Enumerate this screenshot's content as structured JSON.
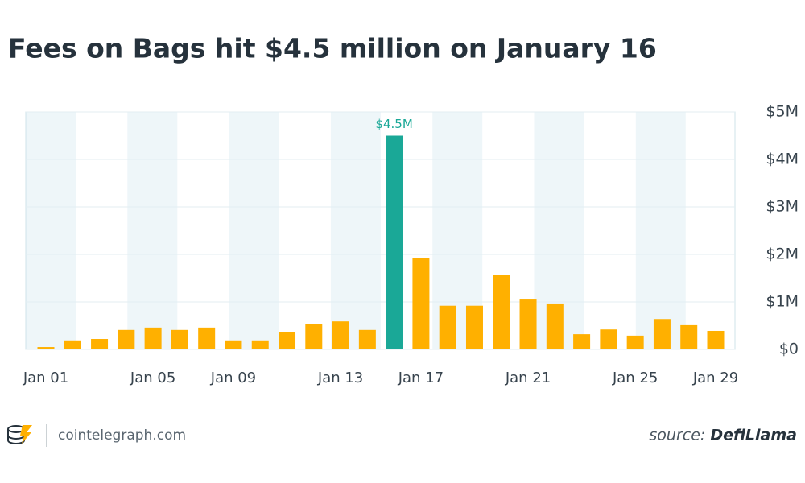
{
  "chart_data": {
    "type": "bar",
    "title": "Fees on Bags hit $4.5 million on January 16",
    "categories": [
      "Jan 01",
      null,
      null,
      null,
      "Jan 05",
      null,
      null,
      "Jan 09",
      null,
      null,
      null,
      "Jan 13",
      null,
      null,
      "Jan 17",
      null,
      null,
      null,
      "Jan 21",
      null,
      null,
      null,
      "Jan 25",
      null,
      null,
      "Jan 29"
    ],
    "values": [
      50000,
      190000,
      220000,
      410000,
      460000,
      410000,
      460000,
      190000,
      190000,
      360000,
      530000,
      590000,
      410000,
      4500000,
      1930000,
      920000,
      920000,
      1560000,
      1050000,
      950000,
      320000,
      420000,
      290000,
      640000,
      510000,
      390000
    ],
    "value_labels": [
      null,
      null,
      null,
      null,
      null,
      null,
      null,
      null,
      null,
      null,
      null,
      null,
      null,
      "$4.5M",
      null,
      null,
      null,
      null,
      null,
      null,
      null,
      null,
      null,
      null,
      null,
      null
    ],
    "colors": [
      "#ffb000",
      "#ffb000",
      "#ffb000",
      "#ffb000",
      "#ffb000",
      "#ffb000",
      "#ffb000",
      "#ffb000",
      "#ffb000",
      "#ffb000",
      "#ffb000",
      "#ffb000",
      "#ffb000",
      "#1aa897",
      "#ffb000",
      "#ffb000",
      "#ffb000",
      "#ffb000",
      "#ffb000",
      "#ffb000",
      "#ffb000",
      "#ffb000",
      "#ffb000",
      "#ffb000",
      "#ffb000",
      "#ffb000"
    ],
    "ylim": [
      0,
      5000000
    ],
    "yticks": [
      {
        "value": 0,
        "label": "$0"
      },
      {
        "value": 1000000,
        "label": "$1M"
      },
      {
        "value": 2000000,
        "label": "$2M"
      },
      {
        "value": 3000000,
        "label": "$3M"
      },
      {
        "value": 4000000,
        "label": "$4M"
      },
      {
        "value": 5000000,
        "label": "$5M"
      }
    ],
    "grid": true,
    "y_axis_side": "right"
  },
  "footer": {
    "brand": "cointelegraph.com",
    "source_label": "source:",
    "source_name": "DefiLlama"
  }
}
